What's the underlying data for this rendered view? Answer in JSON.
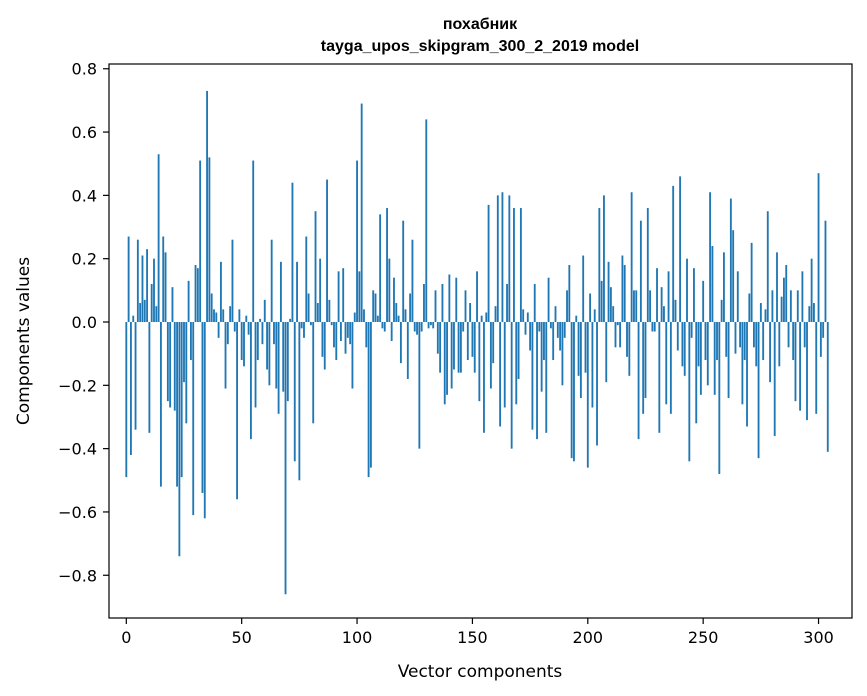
{
  "chart_data": {
    "type": "bar",
    "title": "похабник",
    "subtitle": "tayga_upos_skipgram_300_2_2019 model",
    "xlabel": "Vector components",
    "ylabel": "Components values",
    "xlim": [
      -7.5,
      314.5
    ],
    "ylim": [
      -0.935,
      0.815
    ],
    "xticks": [
      0,
      50,
      100,
      150,
      200,
      250,
      300
    ],
    "yticks": [
      -0.8,
      -0.6,
      -0.4,
      -0.2,
      0.0,
      0.2,
      0.4,
      0.6,
      0.8
    ],
    "ytick_labels": [
      "−0.8",
      "−0.6",
      "−0.4",
      "−0.2",
      "0.0",
      "0.2",
      "0.4",
      "0.6",
      "0.8"
    ],
    "bar_color": "#1f77b4",
    "grid": false,
    "values": [
      -0.49,
      0.27,
      -0.42,
      0.02,
      -0.34,
      0.26,
      0.06,
      0.21,
      0.07,
      0.23,
      -0.35,
      0.12,
      0.2,
      0.05,
      0.53,
      -0.52,
      0.27,
      0.22,
      -0.25,
      -0.27,
      0.11,
      -0.28,
      -0.52,
      -0.74,
      -0.49,
      -0.19,
      -0.32,
      0.13,
      -0.12,
      -0.61,
      0.18,
      0.17,
      0.51,
      -0.54,
      -0.62,
      0.73,
      0.52,
      0.09,
      0.04,
      0.03,
      -0.05,
      0.19,
      0.04,
      -0.21,
      -0.07,
      0.05,
      0.26,
      -0.03,
      -0.56,
      0.04,
      -0.12,
      -0.14,
      0.02,
      -0.04,
      -0.37,
      0.51,
      -0.27,
      -0.12,
      0.01,
      -0.07,
      0.07,
      -0.15,
      -0.2,
      0.26,
      -0.07,
      -0.21,
      -0.29,
      0.19,
      -0.22,
      -0.86,
      -0.25,
      0.01,
      0.44,
      -0.44,
      0.19,
      -0.5,
      -0.02,
      -0.05,
      0.27,
      0.09,
      -0.01,
      -0.32,
      0.35,
      0.06,
      0.2,
      -0.11,
      -0.15,
      0.45,
      0.07,
      -0.01,
      -0.08,
      -0.12,
      0.16,
      -0.06,
      0.17,
      -0.1,
      -0.05,
      -0.07,
      -0.21,
      0.03,
      0.51,
      0.16,
      0.69,
      0.04,
      -0.08,
      -0.49,
      -0.46,
      0.1,
      0.09,
      0.02,
      0.34,
      -0.02,
      -0.03,
      0.36,
      0.2,
      -0.06,
      0.14,
      0.06,
      0.02,
      -0.13,
      0.32,
      0.04,
      -0.18,
      0.09,
      0.26,
      -0.03,
      -0.04,
      -0.4,
      -0.03,
      0.12,
      0.64,
      -0.02,
      -0.01,
      -0.02,
      0.1,
      -0.1,
      -0.16,
      0.12,
      -0.26,
      -0.23,
      0.15,
      -0.21,
      -0.15,
      0.14,
      -0.16,
      -0.16,
      -0.03,
      0.1,
      -0.12,
      0.06,
      -0.11,
      -0.16,
      0.16,
      -0.25,
      0.02,
      -0.35,
      0.03,
      0.37,
      -0.21,
      -0.13,
      0.05,
      0.4,
      -0.33,
      0.41,
      -0.27,
      0.12,
      0.4,
      -0.4,
      0.36,
      -0.26,
      -0.18,
      0.36,
      0.04,
      -0.04,
      0.03,
      -0.09,
      -0.34,
      0.12,
      -0.37,
      -0.03,
      -0.22,
      -0.12,
      -0.35,
      0.14,
      -0.02,
      -0.12,
      0.05,
      -0.05,
      -0.09,
      -0.2,
      -0.05,
      0.1,
      0.18,
      -0.43,
      -0.44,
      0.02,
      -0.17,
      -0.24,
      0.21,
      -0.16,
      -0.46,
      0.09,
      -0.27,
      0.04,
      -0.39,
      0.36,
      0.13,
      0.4,
      -0.19,
      0.19,
      0.11,
      0.05,
      -0.08,
      -0.01,
      -0.08,
      0.21,
      0.18,
      -0.11,
      -0.17,
      0.41,
      0.1,
      0.1,
      -0.37,
      0.32,
      -0.29,
      -0.24,
      0.36,
      0.1,
      -0.03,
      -0.03,
      0.17,
      -0.35,
      0.11,
      0.05,
      -0.26,
      0.16,
      -0.29,
      0.43,
      0.07,
      -0.09,
      0.46,
      -0.14,
      -0.17,
      0.2,
      -0.44,
      -0.05,
      0.17,
      -0.32,
      -0.14,
      -0.23,
      0.13,
      -0.12,
      -0.2,
      0.41,
      0.24,
      -0.23,
      -0.12,
      -0.48,
      0.07,
      0.22,
      -0.11,
      -0.24,
      0.39,
      0.29,
      -0.1,
      0.16,
      -0.08,
      -0.26,
      -0.12,
      -0.33,
      0.09,
      0.25,
      -0.08,
      -0.14,
      -0.43,
      0.06,
      -0.12,
      0.04,
      0.35,
      -0.19,
      0.1,
      -0.36,
      0.22,
      -0.14,
      0.08,
      0.14,
      0.18,
      -0.08,
      0.1,
      -0.12,
      -0.25,
      0.1,
      -0.28,
      0.16,
      -0.08,
      -0.31,
      0.05,
      0.2,
      0.06,
      -0.29,
      0.47,
      -0.11,
      -0.05,
      0.32,
      -0.41
    ]
  }
}
